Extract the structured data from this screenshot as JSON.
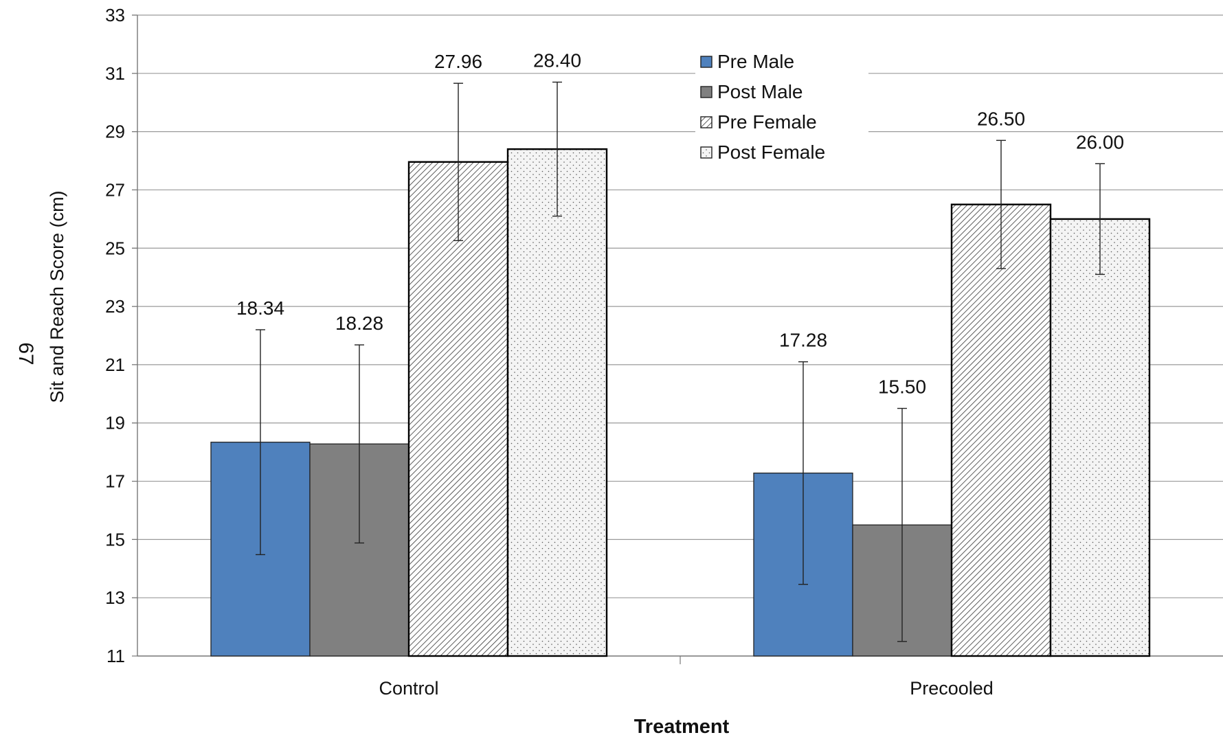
{
  "page_number": "67",
  "chart_data": {
    "type": "bar",
    "title": "",
    "xlabel": "Treatment",
    "ylabel": "Sit and Reach Score (cm)",
    "ylim": [
      11,
      33
    ],
    "yticks": [
      "11",
      "13",
      "15",
      "17",
      "19",
      "21",
      "23",
      "25",
      "27",
      "29",
      "31",
      "33"
    ],
    "grid": true,
    "legend_position": "top-center",
    "categories": [
      "Control",
      "Precooled"
    ],
    "series": [
      {
        "name": "Pre Male",
        "color": "#4F81BD",
        "pattern": "solid",
        "values": [
          18.34,
          17.28
        ],
        "errors": [
          3.86,
          3.82
        ],
        "labels": [
          "18.34",
          "17.28"
        ]
      },
      {
        "name": "Post Male",
        "color": "#808080",
        "pattern": "solid",
        "values": [
          18.28,
          15.5
        ],
        "errors": [
          3.4,
          4.0
        ],
        "labels": [
          "18.28",
          "15.50"
        ]
      },
      {
        "name": "Pre Female",
        "color": "#ffffff",
        "pattern": "diagonal-hatch",
        "values": [
          27.96,
          26.5
        ],
        "errors": [
          2.7,
          2.2
        ],
        "labels": [
          "27.96",
          "26.50"
        ]
      },
      {
        "name": "Post Female",
        "color": "#ffffff",
        "pattern": "dots",
        "values": [
          28.4,
          26.0
        ],
        "errors": [
          2.3,
          1.9
        ],
        "labels": [
          "28.40",
          "26.00"
        ]
      }
    ]
  }
}
